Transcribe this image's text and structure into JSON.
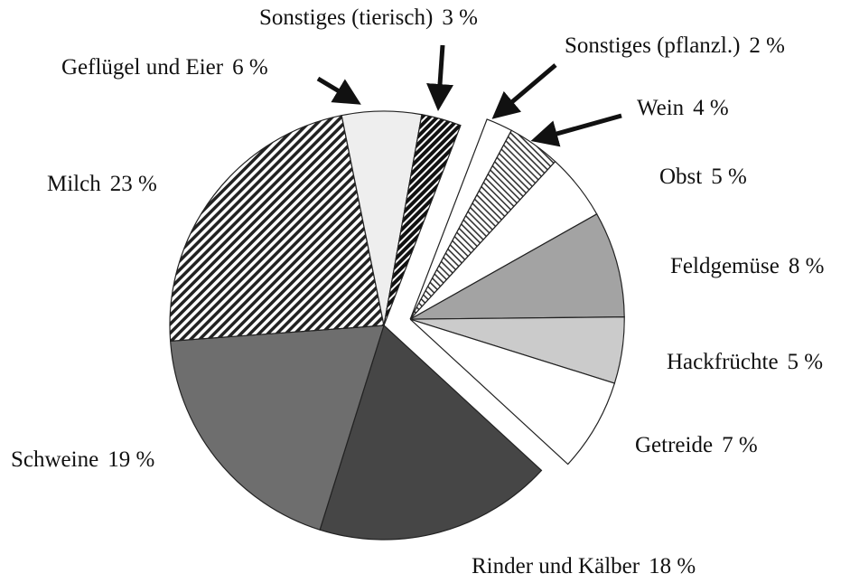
{
  "chart_data": {
    "type": "pie",
    "categories": [
      "Sonstiges (pflanzl.)",
      "Wein",
      "Obst",
      "Feldgemüse",
      "Hackfrüchte",
      "Getreide",
      "Rinder und Kälber",
      "Schweine",
      "Milch",
      "Geflügel und Eier",
      "Sonstiges (tierisch)"
    ],
    "values": [
      2,
      4,
      5,
      8,
      5,
      7,
      18,
      19,
      23,
      6,
      3
    ],
    "value_labels": [
      "2 %",
      "4 %",
      "5 %",
      "8 %",
      "5 %",
      "7 %",
      "18 %",
      "19 %",
      "23 %",
      "6 %",
      "3 %"
    ],
    "colors": [
      "#ffffff",
      "url(#hatch-fine)",
      "#ffffff",
      "#a3a3a3",
      "#cbcbcb",
      "#ffffff",
      "#464646",
      "#6e6e6e",
      "url(#hatch-milch)",
      "#eeeeee",
      "url(#hatch-dark)"
    ],
    "explode": [
      true,
      true,
      true,
      true,
      true,
      true,
      false,
      false,
      false,
      false,
      false
    ]
  }
}
